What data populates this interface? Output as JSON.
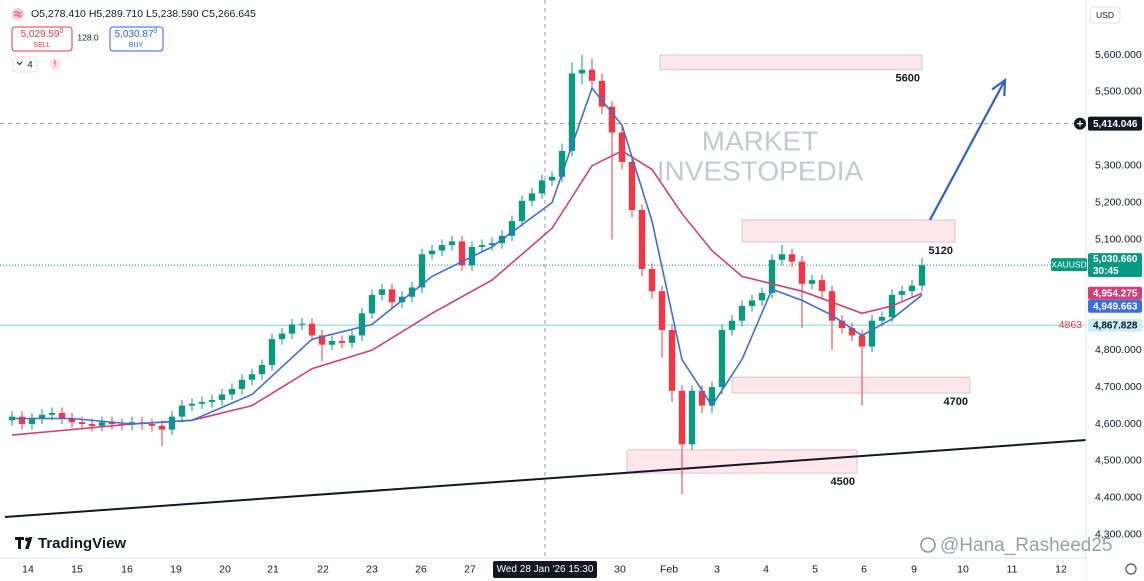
{
  "chart_data": {
    "type": "candlestick",
    "up_color": "#089981",
    "down_color": "#f23645",
    "xlim": [
      -1.2,
      107.3
    ],
    "ylim": [
      4237,
      5749
    ],
    "grid": false,
    "yticks": [
      {
        "value": 5600,
        "label": "5,600.000"
      },
      {
        "value": 5500,
        "label": "5,500.000"
      },
      {
        "value": 5300,
        "label": "5,300.000"
      },
      {
        "value": 5200,
        "label": "5,200.000"
      },
      {
        "value": 5100,
        "label": "5,100.000"
      },
      {
        "value": 4800,
        "label": "4,800.000"
      },
      {
        "value": 4700,
        "label": "4,700.000"
      },
      {
        "value": 4600,
        "label": "4,600.000"
      },
      {
        "value": 4500,
        "label": "4,500.000"
      },
      {
        "value": 4400,
        "label": "4,400.000"
      },
      {
        "value": 4300,
        "label": "4,300.000"
      }
    ],
    "xticks": [
      {
        "value": 1.6,
        "label": "14"
      },
      {
        "value": 6.5,
        "label": "15"
      },
      {
        "value": 11.5,
        "label": "16"
      },
      {
        "value": 16.4,
        "label": "19"
      },
      {
        "value": 21.3,
        "label": "20"
      },
      {
        "value": 26.1,
        "label": "21"
      },
      {
        "value": 31.1,
        "label": "22"
      },
      {
        "value": 36,
        "label": "23"
      },
      {
        "value": 40.9,
        "label": "26"
      },
      {
        "value": 45.8,
        "label": "27"
      },
      {
        "value": 60.8,
        "label": "30"
      },
      {
        "value": 65.7,
        "label": "Feb"
      },
      {
        "value": 70.5,
        "label": "3"
      },
      {
        "value": 75.4,
        "label": "4"
      },
      {
        "value": 80.3,
        "label": "5"
      },
      {
        "value": 85.2,
        "label": "6"
      },
      {
        "value": 90.2,
        "label": "9"
      },
      {
        "value": 95.1,
        "label": "10"
      },
      {
        "value": 100,
        "label": "11"
      },
      {
        "value": 104.9,
        "label": "12"
      }
    ],
    "open": [
      4610,
      4620,
      4600,
      4615,
      4625,
      4630,
      4615,
      4605,
      4600,
      4595,
      4605,
      4600,
      4598,
      4605,
      4600,
      4595,
      4585,
      4620,
      4650,
      4655,
      4660,
      4665,
      4680,
      4695,
      4720,
      4735,
      4760,
      4830,
      4845,
      4870,
      4872,
      4840,
      4815,
      4825,
      4820,
      4840,
      4900,
      4950,
      4965,
      4930,
      4945,
      4970,
      5060,
      5070,
      5085,
      5095,
      5030,
      5080,
      5085,
      5090,
      5110,
      5150,
      5205,
      5225,
      5260,
      5270,
      5340,
      5550,
      5560,
      5530,
      5460,
      5390,
      5310,
      5180,
      5020,
      4960,
      4855,
      4690,
      4545,
      4690,
      4650,
      4700,
      4855,
      4880,
      4920,
      4935,
      4955,
      5045,
      5060,
      5040,
      4980,
      4990,
      4960,
      4880,
      4860,
      4840,
      4810,
      4880,
      4890,
      4950,
      4960,
      4975
    ],
    "high": [
      4635,
      4635,
      4630,
      4640,
      4645,
      4645,
      4630,
      4620,
      4615,
      4620,
      4620,
      4615,
      4620,
      4620,
      4615,
      4610,
      4635,
      4665,
      4670,
      4675,
      4680,
      4695,
      4710,
      4735,
      4750,
      4775,
      4845,
      4860,
      4885,
      4887,
      4887,
      4855,
      4840,
      4840,
      4855,
      4915,
      4965,
      4980,
      4980,
      4960,
      4985,
      5075,
      5085,
      5100,
      5110,
      5110,
      5095,
      5100,
      5105,
      5125,
      5165,
      5220,
      5240,
      5275,
      5285,
      5360,
      5580,
      5600,
      5590,
      5550,
      5475,
      5405,
      5325,
      5195,
      5035,
      4975,
      4870,
      4705,
      4705,
      4705,
      4715,
      4870,
      4895,
      4935,
      4950,
      4970,
      5060,
      5085,
      5075,
      5055,
      5005,
      5005,
      4975,
      4895,
      4875,
      4855,
      4895,
      4905,
      4965,
      4975,
      4990,
      5050
    ],
    "low": [
      4595,
      4585,
      4585,
      4600,
      4610,
      4600,
      4590,
      4585,
      4580,
      4580,
      4585,
      4583,
      4583,
      4585,
      4580,
      4540,
      4570,
      4605,
      4635,
      4640,
      4645,
      4650,
      4665,
      4680,
      4705,
      4720,
      4745,
      4815,
      4830,
      4855,
      4825,
      4770,
      4800,
      4805,
      4805,
      4825,
      4885,
      4935,
      4915,
      4915,
      4930,
      4955,
      5045,
      5055,
      5070,
      5015,
      5015,
      5065,
      5070,
      5075,
      5095,
      5135,
      5190,
      5210,
      5245,
      5255,
      5325,
      5520,
      5510,
      5440,
      5100,
      5290,
      5160,
      5000,
      4940,
      4780,
      4660,
      4410,
      4530,
      4630,
      4630,
      4680,
      4840,
      4865,
      4905,
      4920,
      4940,
      5030,
      5025,
      4860,
      4965,
      4940,
      4800,
      4845,
      4825,
      4650,
      4795,
      4865,
      4875,
      4935,
      4945,
      4960
    ],
    "close": [
      4620,
      4600,
      4615,
      4625,
      4630,
      4615,
      4605,
      4600,
      4595,
      4605,
      4600,
      4598,
      4605,
      4600,
      4595,
      4585,
      4620,
      4650,
      4655,
      4660,
      4665,
      4680,
      4695,
      4720,
      4735,
      4760,
      4830,
      4845,
      4870,
      4872,
      4840,
      4815,
      4825,
      4820,
      4840,
      4900,
      4950,
      4965,
      4930,
      4945,
      4970,
      5060,
      5070,
      5085,
      5095,
      5030,
      5080,
      5085,
      5090,
      5110,
      5150,
      5205,
      5225,
      5260,
      5270,
      5340,
      5550,
      5560,
      5530,
      5460,
      5390,
      5310,
      5180,
      5020,
      4960,
      4855,
      4690,
      4545,
      4690,
      4650,
      4700,
      4855,
      4880,
      4920,
      4935,
      4955,
      5045,
      5060,
      5040,
      4980,
      4990,
      4960,
      4880,
      4860,
      4840,
      4810,
      4880,
      4890,
      4950,
      4960,
      4975,
      5030.66
    ],
    "moving_averages": [
      {
        "color": "#d13f78",
        "x": [
          0,
          12,
          18,
          24,
          30,
          36,
          42,
          48,
          54,
          58,
          61,
          64,
          67,
          70,
          73,
          76,
          79,
          82,
          85,
          88,
          91
        ],
        "values": [
          4570,
          4600,
          4610,
          4650,
          4750,
          4800,
          4900,
          4990,
          5130,
          5300,
          5340,
          5290,
          5170,
          5070,
          5000,
          4980,
          4960,
          4930,
          4900,
          4920,
          4954.275
        ],
        "last_label": "4,954.275"
      },
      {
        "color": "#3d6fd6",
        "x": [
          0,
          6,
          12,
          18,
          24,
          30,
          36,
          42,
          48,
          54,
          58,
          61,
          64,
          67,
          70,
          73,
          76,
          79,
          82,
          85,
          88,
          91
        ],
        "values": [
          4615,
          4615,
          4600,
          4610,
          4680,
          4830,
          4870,
          5000,
          5080,
          5200,
          5510,
          5410,
          5150,
          4775,
          4650,
          4775,
          4965,
          4935,
          4895,
          4840,
          4885,
          4949.663
        ],
        "last_label": "4,949.663"
      }
    ],
    "last_price": {
      "value": 5030.66,
      "label": "5,030.660",
      "countdown": "30:45",
      "symbol": "XAUUSD"
    },
    "price_line": {
      "value": 4867.828,
      "label": "4,867.828",
      "title": "4863",
      "color": "#8fd9e3"
    },
    "crosshair": {
      "x": 53.3,
      "x_label": "Wed 28 Jan '26 15:30",
      "y": 5414.046,
      "y_label": "5,414.046"
    },
    "zones": [
      {
        "top": 5600,
        "bottom": 5560,
        "x0": 64.8,
        "x1": 91,
        "label": "5600"
      },
      {
        "top": 5153,
        "bottom": 5093,
        "x0": 73,
        "x1": 94.3,
        "label": "5120"
      },
      {
        "top": 4727,
        "bottom": 4684,
        "x0": 72,
        "x1": 95.8,
        "label": "4700"
      },
      {
        "top": 4530,
        "bottom": 4467,
        "x0": 61.5,
        "x1": 84.5,
        "label": "4500"
      }
    ],
    "trendline": {
      "x": [
        -0.7,
        107.6
      ],
      "values": [
        4348,
        4557
      ],
      "color": "#131722"
    },
    "arrow": {
      "x": [
        91.8,
        99.3
      ],
      "values": [
        5153,
        5532
      ],
      "color": "#2f62c9"
    }
  },
  "ui": {
    "ohlc": [
      "O5,278.410",
      "H5,289.710",
      "L5,238.590",
      "C5,266.645"
    ],
    "sell": {
      "price": "5,029.59",
      "sup": "0",
      "label": "SELL"
    },
    "spread": "128.0",
    "buy": {
      "price": "5,030.87",
      "sup": "0",
      "label": "BUY"
    },
    "indicators": "4",
    "alert": "!",
    "currency": "USD",
    "watermark": [
      "MARKET",
      "INVESTOPEDIA"
    ],
    "brand": "TradingView",
    "credit": "@Hana_Rasheed25"
  }
}
